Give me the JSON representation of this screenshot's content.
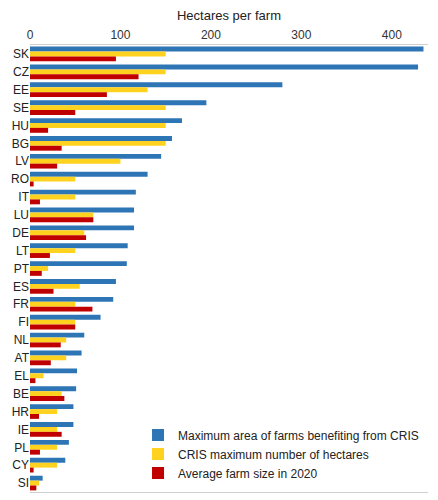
{
  "chart_data": {
    "type": "bar",
    "orientation": "horizontal",
    "x_label": "Hectares per farm",
    "categories": [
      "SK",
      "CZ",
      "EE",
      "SE",
      "HU",
      "BG",
      "LV",
      "RO",
      "IT",
      "LU",
      "DE",
      "LT",
      "PT",
      "ES",
      "FR",
      "FI",
      "NL",
      "AT",
      "EL",
      "BE",
      "HR",
      "IE",
      "PL",
      "CY",
      "SI"
    ],
    "series": [
      {
        "name": "Maximum area of farms benefiting from CRIS",
        "color": "#2E75B6",
        "values": [
          435,
          429,
          279,
          195,
          168,
          157,
          145,
          130,
          117,
          115,
          115,
          108,
          107,
          95,
          92,
          78,
          60,
          57,
          52,
          51,
          48,
          48,
          43,
          39,
          14
        ]
      },
      {
        "name": "CRIS maximum number of hectares",
        "color": "#FFD21F",
        "values": [
          150,
          150,
          130,
          150,
          150,
          150,
          100,
          50,
          50,
          70,
          60,
          50,
          20,
          55,
          50,
          50,
          40,
          40,
          15,
          35,
          30,
          30,
          30,
          30,
          10
        ]
      },
      {
        "name": "Average farm size in 2020",
        "color": "#C00000",
        "values": [
          95,
          120,
          85,
          50,
          20,
          35,
          30,
          4,
          11,
          70,
          62,
          22,
          13,
          26,
          69,
          50,
          34,
          23,
          6,
          38,
          10,
          35,
          11,
          4,
          7
        ]
      }
    ],
    "xlim": [
      0,
      440
    ],
    "xticks": [
      0,
      100,
      200,
      300,
      400
    ],
    "grid": false,
    "legend": "bottom right"
  }
}
